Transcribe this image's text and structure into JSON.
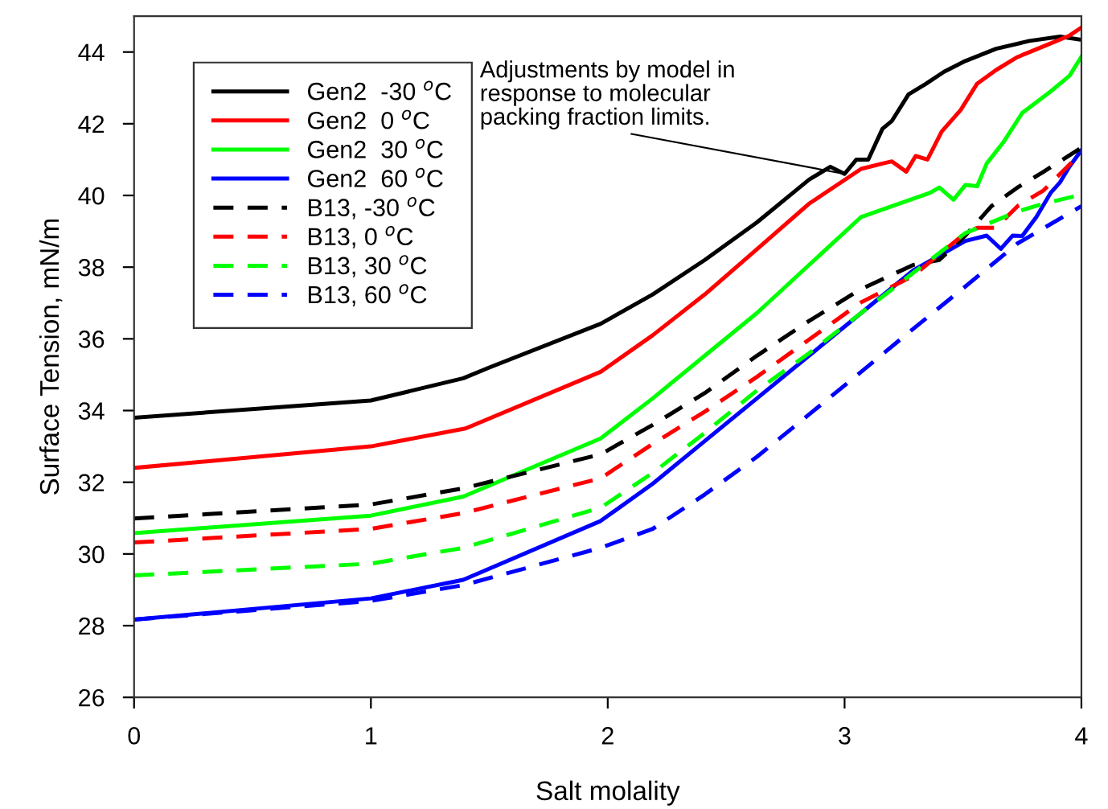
{
  "chart_data": {
    "type": "line",
    "xlabel": "Salt molality",
    "ylabel": "Surface Tension, mN/m",
    "xlim": [
      0,
      4
    ],
    "xticks": [
      0,
      1,
      2,
      3,
      4
    ],
    "ylim": [
      26,
      45
    ],
    "yticks": [
      26,
      28,
      30,
      32,
      34,
      36,
      38,
      40,
      42,
      44
    ],
    "grid": false,
    "legend": "top left",
    "marker": "none",
    "annotations": [
      {
        "text": "Adjustments by model in\nresponse to molecular\npacking fraction limits.",
        "x": 3.0,
        "y": 40.6
      }
    ],
    "series": [
      {
        "name": "Gen2  -30 $^{o}$C",
        "color": "#000000",
        "line_style": "solid",
        "x": [
          0,
          1,
          1.39,
          1.5,
          1.97,
          2.19,
          2.41,
          2.63,
          2.85,
          2.94,
          3.0,
          3.05,
          3.1,
          3.16,
          3.2,
          3.27,
          3.34,
          3.42,
          3.51,
          3.64,
          3.78,
          3.91,
          4.0
        ],
        "values": [
          33.8,
          34.28,
          34.9,
          35.2,
          36.42,
          37.24,
          38.2,
          39.25,
          40.44,
          40.8,
          40.6,
          41.0,
          41.0,
          41.86,
          42.08,
          42.82,
          43.1,
          43.45,
          43.75,
          44.09,
          44.31,
          44.43,
          44.34
        ]
      },
      {
        "name": "Gen2  0 $^{o}$C",
        "color": "#ff0000",
        "line_style": "solid",
        "x": [
          0,
          1,
          1.4,
          1.97,
          2.19,
          2.41,
          2.63,
          2.85,
          3.07,
          3.16,
          3.2,
          3.26,
          3.3,
          3.35,
          3.41,
          3.49,
          3.56,
          3.64,
          3.73,
          3.84,
          3.95,
          4.0
        ],
        "values": [
          32.4,
          33.0,
          33.5,
          35.08,
          36.1,
          37.24,
          38.5,
          39.77,
          40.74,
          40.89,
          40.95,
          40.66,
          41.1,
          41.0,
          41.78,
          42.38,
          43.12,
          43.5,
          43.86,
          44.16,
          44.46,
          44.68
        ]
      },
      {
        "name": "Gen2  30 $^{o}$C",
        "color": "#00ff00",
        "line_style": "solid",
        "x": [
          0,
          1,
          1.39,
          1.97,
          2.19,
          2.41,
          2.63,
          2.85,
          3.07,
          3.36,
          3.4,
          3.46,
          3.51,
          3.56,
          3.6,
          3.67,
          3.75,
          3.87,
          3.95,
          4.0
        ],
        "values": [
          30.58,
          31.07,
          31.6,
          33.22,
          34.34,
          35.53,
          36.72,
          38.06,
          39.4,
          40.07,
          40.22,
          39.88,
          40.29,
          40.26,
          40.89,
          41.48,
          42.3,
          42.9,
          43.34,
          43.87
        ]
      },
      {
        "name": "Gen2  60 $^{o}$C",
        "color": "#0000ff",
        "line_style": "solid",
        "x": [
          0,
          1,
          1.39,
          1.97,
          2.19,
          2.41,
          2.63,
          2.85,
          3.07,
          3.29,
          3.51,
          3.6,
          3.66,
          3.71,
          3.75,
          3.81,
          3.87,
          3.91,
          3.95,
          4.0
        ],
        "values": [
          28.17,
          28.76,
          29.28,
          30.92,
          31.96,
          33.15,
          34.34,
          35.53,
          36.72,
          37.91,
          38.73,
          38.88,
          38.51,
          38.88,
          38.87,
          39.4,
          40.07,
          40.37,
          40.81,
          41.26
        ]
      },
      {
        "name": "B13, -30 $^{o}$C",
        "color": "#000000",
        "line_style": "dashed",
        "x": [
          0,
          1,
          1.39,
          1.97,
          2.19,
          2.41,
          2.63,
          2.85,
          3.07,
          3.29,
          3.4,
          3.51,
          3.62,
          3.73,
          3.84,
          4.0
        ],
        "values": [
          30.99,
          31.38,
          31.83,
          32.78,
          33.6,
          34.49,
          35.53,
          36.5,
          37.39,
          38.06,
          38.2,
          38.88,
          39.7,
          40.22,
          40.66,
          41.33
        ]
      },
      {
        "name": "B13, 0 $^{o}$C",
        "color": "#ff0000",
        "line_style": "dashed",
        "x": [
          0,
          1,
          1.39,
          1.97,
          2.19,
          2.41,
          2.63,
          2.85,
          3.07,
          3.29,
          3.51,
          3.56,
          3.64,
          3.73,
          3.84,
          4.0
        ],
        "values": [
          30.32,
          30.7,
          31.14,
          32.11,
          33.07,
          33.97,
          34.94,
          35.98,
          37.02,
          37.76,
          38.95,
          39.1,
          39.1,
          39.7,
          40.14,
          41.19
        ]
      },
      {
        "name": "B13, 30 $^{o}$C",
        "color": "#00ff00",
        "line_style": "dashed",
        "x": [
          0,
          1,
          1.39,
          1.97,
          2.19,
          2.41,
          2.63,
          2.85,
          3.07,
          3.29,
          3.51,
          3.73,
          3.84,
          4.0
        ],
        "values": [
          29.4,
          29.73,
          30.17,
          31.29,
          32.26,
          33.38,
          34.56,
          35.6,
          36.72,
          37.84,
          38.95,
          39.55,
          39.77,
          40.02
        ]
      },
      {
        "name": "B13, 60 $^{o}$C",
        "color": "#0000ff",
        "line_style": "dashed",
        "x": [
          0,
          1,
          1.39,
          1.97,
          2.19,
          2.41,
          2.63,
          2.85,
          3.07,
          3.29,
          3.51,
          3.73,
          4.0
        ],
        "values": [
          28.17,
          28.69,
          29.13,
          30.17,
          30.7,
          31.66,
          32.71,
          33.89,
          35.08,
          36.28,
          37.46,
          38.66,
          39.7
        ]
      }
    ]
  }
}
